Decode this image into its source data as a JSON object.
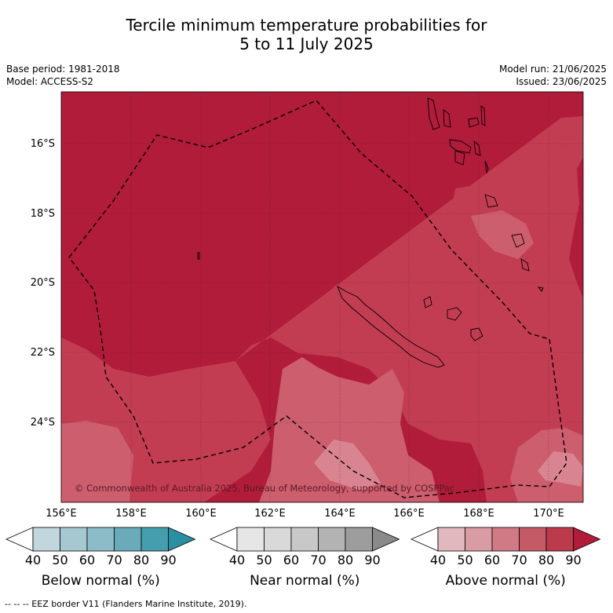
{
  "title_line1": "Tercile minimum temperature probabilities for",
  "title_line2": "5 to 11 July 2025",
  "meta": {
    "base_period": "Base period: 1981-2018",
    "model": "Model: ACCESS-S2",
    "model_run": "Model run: 21/06/2025",
    "issued": "Issued: 23/06/2025"
  },
  "map": {
    "lat_labels": [
      "16°S",
      "18°S",
      "20°S",
      "22°S",
      "24°S"
    ],
    "lon_labels": [
      "156°E",
      "158°E",
      "160°E",
      "162°E",
      "164°E",
      "166°E",
      "168°E",
      "170°E"
    ],
    "copyright": "© Commonwealth of Australia 2025, Bureau of Meteorology, supported by COSPPac",
    "colors": {
      "high": "#b01c3a",
      "mid": "#c23d52",
      "low": "#cc5e6e",
      "lowest": "#d98591"
    }
  },
  "legends": [
    {
      "name": "Below normal (%)",
      "ticks": [
        "40",
        "50",
        "60",
        "70",
        "80",
        "90"
      ],
      "colors": [
        "#ffffff",
        "#c1d6dd",
        "#a6c9d1",
        "#8bbcc7",
        "#6aabb9",
        "#459ead",
        "#2b8fa3"
      ]
    },
    {
      "name": "Near normal (%)",
      "ticks": [
        "40",
        "50",
        "60",
        "70",
        "80",
        "90"
      ],
      "colors": [
        "#ffffff",
        "#e6e6e6",
        "#d9d9d9",
        "#c8c8c8",
        "#b3b3b3",
        "#9d9d9d",
        "#8a8a8a"
      ]
    },
    {
      "name": "Above normal (%)",
      "ticks": [
        "40",
        "50",
        "60",
        "70",
        "80",
        "90"
      ],
      "colors": [
        "#ffffff",
        "#e2b8bf",
        "#d99ba4",
        "#cf7a84",
        "#c55a67",
        "#bb3a4c",
        "#b01c3a"
      ]
    }
  ],
  "footnote": "--  --  -- EEZ border V11 (Flanders Marine Institute, 2019)."
}
